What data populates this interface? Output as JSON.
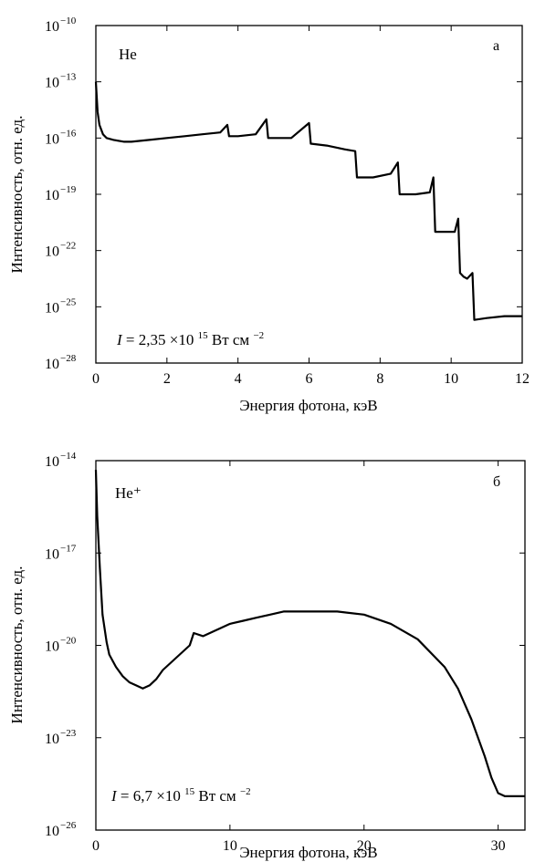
{
  "chart_data": [
    {
      "type": "line",
      "panel_letter": "а",
      "species": "He",
      "intensity_label": "I = 2,35 ×10¹⁵ Вт см⁻²",
      "intensity_prefix": "I",
      "intensity_value": "= 2,35 ×10",
      "intensity_exp": "15",
      "intensity_unit": " Вт см",
      "intensity_unit_exp": "−2",
      "xlabel": "Энергия фотона, кэВ",
      "ylabel": "Интенсивность, отн. ед.",
      "xlim": [
        0,
        12
      ],
      "ylim_log10": [
        -28,
        -10
      ],
      "log_y": true,
      "xticks": [
        "0",
        "2",
        "4",
        "6",
        "8",
        "10",
        "12"
      ],
      "ytick_exponents": [
        "−10",
        "−13",
        "−16",
        "−19",
        "−22",
        "−25",
        "−28"
      ],
      "series": [
        {
          "x": [
            0.0,
            0.05,
            0.1,
            0.2,
            0.3,
            0.5,
            0.8,
            1.0,
            1.5,
            2.0,
            2.5,
            3.0,
            3.5,
            3.7,
            3.75,
            4.0,
            4.5,
            4.8,
            4.85,
            5.0,
            5.5,
            6.0,
            6.05,
            6.5,
            7.0,
            7.3,
            7.35,
            7.8,
            8.3,
            8.5,
            8.55,
            9.0,
            9.4,
            9.5,
            9.55,
            9.8,
            10.1,
            10.2,
            10.25,
            10.35,
            10.45,
            10.6,
            10.65,
            11.0,
            11.5,
            12.0
          ],
          "y_log10": [
            -13.0,
            -14.6,
            -15.3,
            -15.8,
            -16.0,
            -16.1,
            -16.2,
            -16.2,
            -16.1,
            -16.0,
            -15.9,
            -15.8,
            -15.7,
            -15.3,
            -15.9,
            -15.9,
            -15.8,
            -15.0,
            -16.0,
            -16.0,
            -16.0,
            -15.2,
            -16.3,
            -16.4,
            -16.6,
            -16.7,
            -18.1,
            -18.1,
            -17.9,
            -17.3,
            -19.0,
            -19.0,
            -18.9,
            -18.1,
            -21.0,
            -21.0,
            -21.0,
            -20.3,
            -23.2,
            -23.4,
            -23.5,
            -23.2,
            -25.7,
            -25.6,
            -25.5,
            -25.5
          ]
        }
      ]
    },
    {
      "type": "line",
      "panel_letter": "б",
      "species": "He⁺",
      "intensity_label": "I = 6,7 ×10¹⁵ Вт см⁻²",
      "intensity_prefix": "I",
      "intensity_value": "= 6,7 ×10",
      "intensity_exp": "15",
      "intensity_unit": " Вт см",
      "intensity_unit_exp": "−2",
      "xlabel": "Энергия фотона, кэВ",
      "ylabel": "Интенсивность, отн. ед.",
      "xlim": [
        0,
        32
      ],
      "ylim_log10": [
        -26,
        -14
      ],
      "log_y": true,
      "xticks": [
        "0",
        "10",
        "20",
        "30"
      ],
      "ytick_exponents": [
        "−14",
        "−17",
        "−20",
        "−23",
        "−26"
      ],
      "series": [
        {
          "x": [
            0.0,
            0.1,
            0.3,
            0.5,
            0.8,
            1.0,
            1.5,
            2.0,
            2.5,
            3.0,
            3.5,
            4.0,
            4.5,
            5.0,
            6.0,
            7.0,
            7.3,
            8.0,
            9.0,
            10.0,
            11.0,
            12.0,
            13.0,
            14.0,
            16.0,
            18.0,
            20.0,
            22.0,
            24.0,
            26.0,
            27.0,
            28.0,
            29.0,
            29.5,
            30.0,
            30.5,
            31.0,
            32.0
          ],
          "y_log10": [
            -14.3,
            -15.8,
            -17.5,
            -19.0,
            -19.9,
            -20.3,
            -20.7,
            -21.0,
            -21.2,
            -21.3,
            -21.4,
            -21.3,
            -21.1,
            -20.8,
            -20.4,
            -20.0,
            -19.6,
            -19.7,
            -19.5,
            -19.3,
            -19.2,
            -19.1,
            -19.0,
            -18.9,
            -18.9,
            -18.9,
            -19.0,
            -19.3,
            -19.8,
            -20.7,
            -21.4,
            -22.4,
            -23.6,
            -24.3,
            -24.8,
            -24.9,
            -24.9,
            -24.9
          ]
        }
      ]
    }
  ]
}
